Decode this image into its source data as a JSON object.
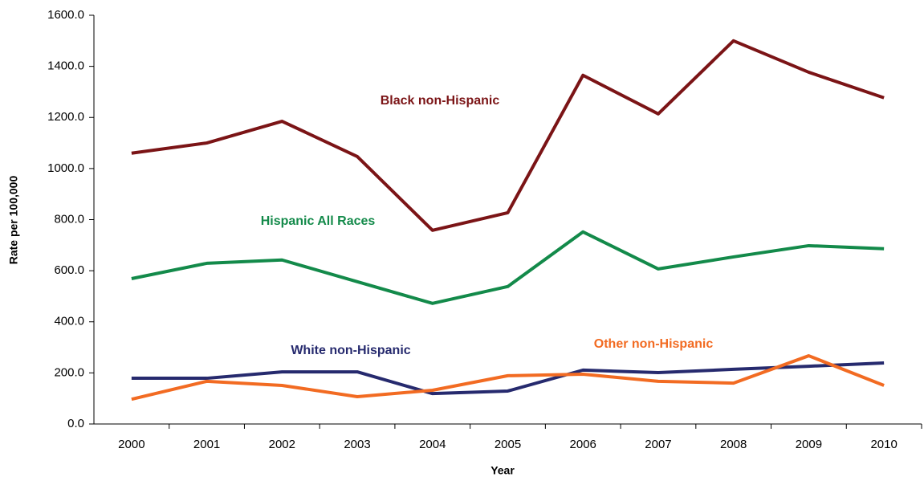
{
  "chart_data": {
    "type": "line",
    "x_label": "Year",
    "y_label": "Rate per 100,000",
    "categories": [
      "2000",
      "2001",
      "2002",
      "2003",
      "2004",
      "2005",
      "2006",
      "2007",
      "2008",
      "2009",
      "2010"
    ],
    "series": [
      {
        "name": "Black non-Hispanic",
        "color": "#7b1416",
        "values": [
          1060,
          1100,
          1185,
          1047,
          758,
          827,
          1365,
          1214,
          1500,
          1377,
          1277
        ]
      },
      {
        "name": "Hispanic All Races",
        "color": "#138a4a",
        "values": [
          569,
          629,
          642,
          557,
          472,
          538,
          752,
          607,
          654,
          698,
          686
        ]
      },
      {
        "name": "White non-Hispanic",
        "color": "#262a6e",
        "values": [
          179,
          179,
          204,
          204,
          119,
          129,
          211,
          201,
          214,
          226,
          239
        ]
      },
      {
        "name": "Other non-Hispanic",
        "color": "#f26b22",
        "values": [
          97,
          167,
          151,
          107,
          132,
          189,
          195,
          167,
          160,
          267,
          151
        ]
      }
    ],
    "ylim": [
      0,
      1600
    ],
    "yticks": [
      {
        "value": 0,
        "label": "0.0"
      },
      {
        "value": 200,
        "label": "200.0"
      },
      {
        "value": 400,
        "label": "400.0"
      },
      {
        "value": 600,
        "label": "600.0"
      },
      {
        "value": 800,
        "label": "800.0"
      },
      {
        "value": 1000,
        "label": "1000.0"
      },
      {
        "value": 1200,
        "label": "1200.0"
      },
      {
        "value": 1400,
        "label": "1400.0"
      },
      {
        "value": 1600,
        "label": "1600.0"
      }
    ],
    "grid": false
  }
}
